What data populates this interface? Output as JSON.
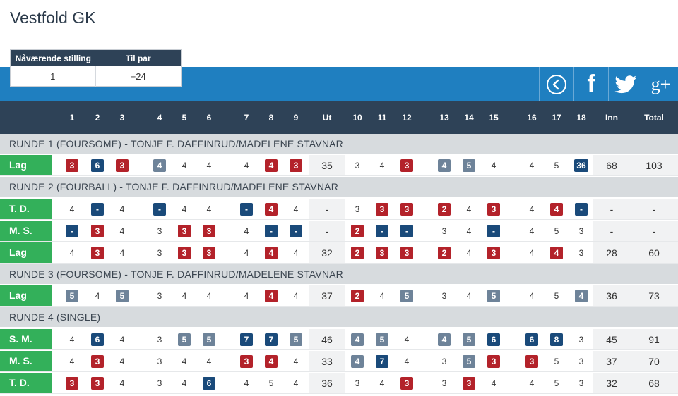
{
  "title": "Vestfold GK",
  "standing": {
    "h1": "Nåværende stilling",
    "h2": "Til par",
    "v1": "1",
    "v2": "+24"
  },
  "social": {
    "prev": "‹",
    "fb": "f",
    "gplus": "g+"
  },
  "columns": [
    "1",
    "2",
    "3",
    "4",
    "5",
    "6",
    "7",
    "8",
    "9",
    "Ut",
    "10",
    "11",
    "12",
    "13",
    "14",
    "15",
    "16",
    "17",
    "18",
    "Inn",
    "Total"
  ],
  "colors": {
    "red": "#b3222a",
    "dark_blue": "#1a4a7a",
    "grey_blue": "#6e8399",
    "green": "#33b05a",
    "header": "#2e4257",
    "band": "#1f7fc0"
  },
  "rounds": [
    {
      "title": "RUNDE 1 (FOURSOME) - TONJE F. DAFFINRUD/MADELENE STAVNAR",
      "rows": [
        {
          "label": "Lag",
          "cells": [
            [
              "3",
              "r"
            ],
            [
              "6",
              "d"
            ],
            [
              "3",
              "r"
            ],
            [
              "4",
              "g"
            ],
            [
              "4",
              ""
            ],
            [
              "4",
              ""
            ],
            [
              "4",
              ""
            ],
            [
              "4",
              "r"
            ],
            [
              "3",
              "r"
            ],
            [
              "35",
              ""
            ],
            [
              "3",
              ""
            ],
            [
              "4",
              ""
            ],
            [
              "3",
              "r"
            ],
            [
              "4",
              "g"
            ],
            [
              "5",
              "g"
            ],
            [
              "4",
              ""
            ],
            [
              "4",
              ""
            ],
            [
              "5",
              ""
            ],
            [
              "36",
              "d"
            ],
            [
              "68",
              ""
            ],
            [
              "103",
              ""
            ]
          ]
        }
      ]
    },
    {
      "title": "RUNDE 2 (FOURBALL) - TONJE F. DAFFINRUD/MADELENE STAVNAR",
      "rows": [
        {
          "label": "T. D.",
          "cells": [
            [
              "4",
              ""
            ],
            [
              "-",
              "d"
            ],
            [
              "4",
              ""
            ],
            [
              "-",
              "d"
            ],
            [
              "4",
              ""
            ],
            [
              "4",
              ""
            ],
            [
              "-",
              "d"
            ],
            [
              "4",
              "r"
            ],
            [
              "4",
              ""
            ],
            [
              "-",
              ""
            ],
            [
              "3",
              ""
            ],
            [
              "3",
              "r"
            ],
            [
              "3",
              "r"
            ],
            [
              "2",
              "r"
            ],
            [
              "4",
              ""
            ],
            [
              "3",
              "r"
            ],
            [
              "4",
              ""
            ],
            [
              "4",
              "r"
            ],
            [
              "-",
              "d"
            ],
            [
              "-",
              ""
            ],
            [
              "-",
              ""
            ]
          ]
        },
        {
          "label": "M. S.",
          "cells": [
            [
              "-",
              "d"
            ],
            [
              "3",
              "r"
            ],
            [
              "4",
              ""
            ],
            [
              "3",
              ""
            ],
            [
              "3",
              "r"
            ],
            [
              "3",
              "r"
            ],
            [
              "4",
              ""
            ],
            [
              "-",
              "d"
            ],
            [
              "-",
              "d"
            ],
            [
              "-",
              ""
            ],
            [
              "2",
              "r"
            ],
            [
              "-",
              "d"
            ],
            [
              "-",
              "d"
            ],
            [
              "3",
              ""
            ],
            [
              "4",
              ""
            ],
            [
              "-",
              "d"
            ],
            [
              "4",
              ""
            ],
            [
              "5",
              ""
            ],
            [
              "3",
              ""
            ],
            [
              "-",
              ""
            ],
            [
              "-",
              ""
            ]
          ]
        },
        {
          "label": "Lag",
          "cells": [
            [
              "4",
              ""
            ],
            [
              "3",
              "r"
            ],
            [
              "4",
              ""
            ],
            [
              "3",
              ""
            ],
            [
              "3",
              "r"
            ],
            [
              "3",
              "r"
            ],
            [
              "4",
              ""
            ],
            [
              "4",
              "r"
            ],
            [
              "4",
              ""
            ],
            [
              "32",
              ""
            ],
            [
              "2",
              "r"
            ],
            [
              "3",
              "r"
            ],
            [
              "3",
              "r"
            ],
            [
              "2",
              "r"
            ],
            [
              "4",
              ""
            ],
            [
              "3",
              "r"
            ],
            [
              "4",
              ""
            ],
            [
              "4",
              "r"
            ],
            [
              "3",
              ""
            ],
            [
              "28",
              ""
            ],
            [
              "60",
              ""
            ]
          ]
        }
      ]
    },
    {
      "title": "RUNDE 3 (FOURSOME) - TONJE F. DAFFINRUD/MADELENE STAVNAR",
      "rows": [
        {
          "label": "Lag",
          "cells": [
            [
              "5",
              "g"
            ],
            [
              "4",
              ""
            ],
            [
              "5",
              "g"
            ],
            [
              "3",
              ""
            ],
            [
              "4",
              ""
            ],
            [
              "4",
              ""
            ],
            [
              "4",
              ""
            ],
            [
              "4",
              "r"
            ],
            [
              "4",
              ""
            ],
            [
              "37",
              ""
            ],
            [
              "2",
              "r"
            ],
            [
              "4",
              ""
            ],
            [
              "5",
              "g"
            ],
            [
              "3",
              ""
            ],
            [
              "4",
              ""
            ],
            [
              "5",
              "g"
            ],
            [
              "4",
              ""
            ],
            [
              "5",
              ""
            ],
            [
              "4",
              "g"
            ],
            [
              "36",
              ""
            ],
            [
              "73",
              ""
            ]
          ]
        }
      ]
    },
    {
      "title": "RUNDE 4 (SINGLE)",
      "rows": [
        {
          "label": "S. M.",
          "cells": [
            [
              "4",
              ""
            ],
            [
              "6",
              "d"
            ],
            [
              "4",
              ""
            ],
            [
              "3",
              ""
            ],
            [
              "5",
              "g"
            ],
            [
              "5",
              "g"
            ],
            [
              "7",
              "d"
            ],
            [
              "7",
              "d"
            ],
            [
              "5",
              "g"
            ],
            [
              "46",
              ""
            ],
            [
              "4",
              "g"
            ],
            [
              "5",
              "g"
            ],
            [
              "4",
              ""
            ],
            [
              "4",
              "g"
            ],
            [
              "5",
              "g"
            ],
            [
              "6",
              "d"
            ],
            [
              "6",
              "d"
            ],
            [
              "8",
              "d"
            ],
            [
              "3",
              ""
            ],
            [
              "45",
              ""
            ],
            [
              "91",
              ""
            ]
          ]
        },
        {
          "label": "M. S.",
          "cells": [
            [
              "4",
              ""
            ],
            [
              "3",
              "r"
            ],
            [
              "4",
              ""
            ],
            [
              "3",
              ""
            ],
            [
              "4",
              ""
            ],
            [
              "4",
              ""
            ],
            [
              "3",
              "r"
            ],
            [
              "4",
              "r"
            ],
            [
              "4",
              ""
            ],
            [
              "33",
              ""
            ],
            [
              "4",
              "g"
            ],
            [
              "7",
              "d"
            ],
            [
              "4",
              ""
            ],
            [
              "3",
              ""
            ],
            [
              "5",
              "g"
            ],
            [
              "3",
              "r"
            ],
            [
              "3",
              "r"
            ],
            [
              "5",
              ""
            ],
            [
              "3",
              ""
            ],
            [
              "37",
              ""
            ],
            [
              "70",
              ""
            ]
          ]
        },
        {
          "label": "T. D.",
          "cells": [
            [
              "3",
              "r"
            ],
            [
              "3",
              "r"
            ],
            [
              "4",
              ""
            ],
            [
              "3",
              ""
            ],
            [
              "4",
              ""
            ],
            [
              "6",
              "d"
            ],
            [
              "4",
              ""
            ],
            [
              "5",
              ""
            ],
            [
              "4",
              ""
            ],
            [
              "36",
              ""
            ],
            [
              "3",
              ""
            ],
            [
              "4",
              ""
            ],
            [
              "3",
              "r"
            ],
            [
              "3",
              ""
            ],
            [
              "3",
              "r"
            ],
            [
              "4",
              ""
            ],
            [
              "4",
              ""
            ],
            [
              "5",
              ""
            ],
            [
              "3",
              ""
            ],
            [
              "32",
              ""
            ],
            [
              "68",
              ""
            ]
          ]
        }
      ]
    }
  ]
}
